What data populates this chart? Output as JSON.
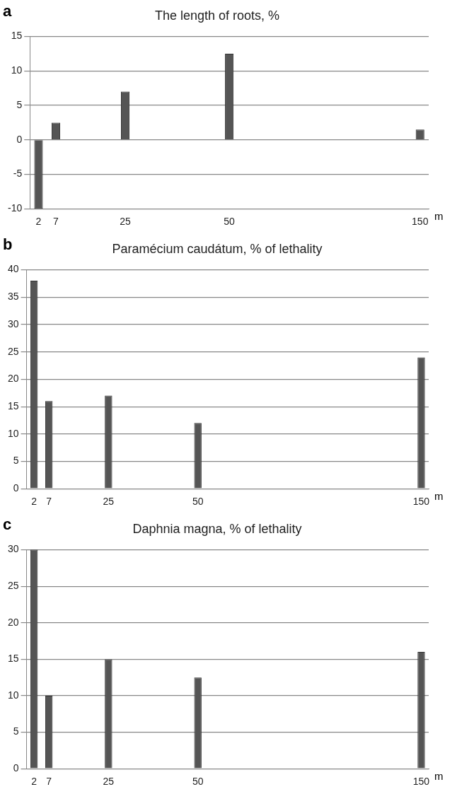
{
  "chart_data": [
    {
      "type": "bar",
      "title": "The length of roots, %",
      "xlabel": "m",
      "annotations": [
        "a"
      ],
      "categories": [
        "2",
        "7",
        null,
        null,
        null,
        "25",
        null,
        null,
        null,
        null,
        null,
        "50",
        null,
        null,
        null,
        null,
        null,
        null,
        null,
        null,
        null,
        null,
        "150"
      ],
      "values": [
        -10,
        2.5,
        null,
        null,
        null,
        7,
        null,
        null,
        null,
        null,
        null,
        12.5,
        null,
        null,
        null,
        null,
        null,
        null,
        null,
        null,
        null,
        null,
        1.5
      ],
      "color": "#555555",
      "ylim": [
        -10,
        15
      ],
      "yticks": [
        -10,
        -5,
        0,
        5,
        10,
        15
      ],
      "grid": "y",
      "legend": false
    },
    {
      "type": "bar",
      "title": "Paramécium caudátum, % of lethality",
      "xlabel": "m",
      "annotations": [
        "b"
      ],
      "categories": [
        "2",
        "7",
        null,
        null,
        null,
        "25",
        null,
        null,
        null,
        null,
        null,
        "50",
        null,
        null,
        null,
        null,
        null,
        null,
        null,
        null,
        null,
        null,
        null,
        null,
        null,
        null,
        "150"
      ],
      "values": [
        38,
        16,
        null,
        null,
        null,
        17,
        null,
        null,
        null,
        null,
        null,
        12,
        null,
        null,
        null,
        null,
        null,
        null,
        null,
        null,
        null,
        null,
        null,
        null,
        null,
        null,
        24
      ],
      "color": "#555555",
      "ylim": [
        0,
        40
      ],
      "yticks": [
        0,
        5,
        10,
        15,
        20,
        25,
        30,
        35,
        40
      ],
      "grid": "y",
      "legend": false
    },
    {
      "type": "bar",
      "title": "Daphnia magna, % of lethality",
      "xlabel": "m",
      "annotations": [
        "c"
      ],
      "categories": [
        "2",
        "7",
        null,
        null,
        null,
        "25",
        null,
        null,
        null,
        null,
        null,
        "50",
        null,
        null,
        null,
        null,
        null,
        null,
        null,
        null,
        null,
        null,
        null,
        null,
        null,
        null,
        "150"
      ],
      "values": [
        30,
        10,
        null,
        null,
        null,
        15,
        null,
        null,
        null,
        null,
        null,
        12.5,
        null,
        null,
        null,
        null,
        null,
        null,
        null,
        null,
        null,
        null,
        null,
        null,
        null,
        null,
        16
      ],
      "color": "#555555",
      "ylim": [
        0,
        30
      ],
      "yticks": [
        0,
        5,
        10,
        15,
        20,
        25,
        30
      ],
      "grid": "y",
      "legend": false
    }
  ]
}
